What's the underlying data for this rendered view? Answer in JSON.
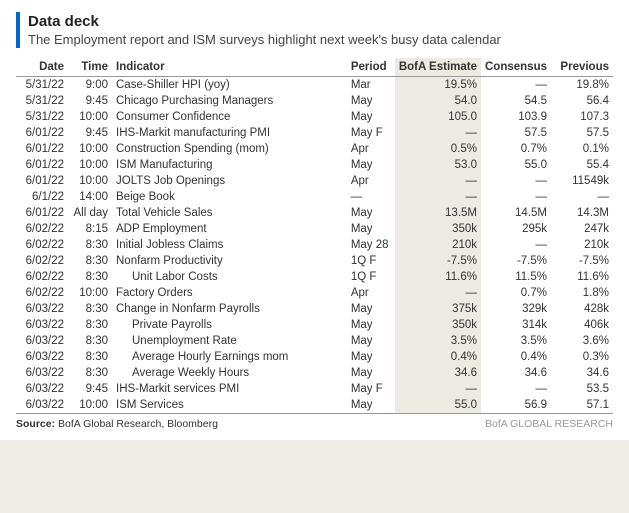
{
  "header": {
    "title": "Data deck",
    "subtitle": "The Employment report and ISM surveys highlight next week's busy data calendar"
  },
  "table": {
    "columns": [
      "Date",
      "Time",
      "Indicator",
      "Period",
      "BofA Estimate",
      "Consensus",
      "Previous"
    ],
    "highlight_column_index": 4,
    "highlight_bg": "#eceae3",
    "rows": [
      {
        "date": "5/31/22",
        "time": "9:00",
        "indicator": "Case-Shiller HPI (yoy)",
        "period": "Mar",
        "est": "19.5%",
        "cons": "—",
        "prev": "19.8%",
        "indent": false
      },
      {
        "date": "5/31/22",
        "time": "9:45",
        "indicator": "Chicago Purchasing Managers",
        "period": "May",
        "est": "54.0",
        "cons": "54.5",
        "prev": "56.4",
        "indent": false
      },
      {
        "date": "5/31/22",
        "time": "10:00",
        "indicator": "Consumer Confidence",
        "period": "May",
        "est": "105.0",
        "cons": "103.9",
        "prev": "107.3",
        "indent": false
      },
      {
        "date": "6/01/22",
        "time": "9:45",
        "indicator": "IHS-Markit manufacturing PMI",
        "period": "May F",
        "est": "—",
        "cons": "57.5",
        "prev": "57.5",
        "indent": false
      },
      {
        "date": "6/01/22",
        "time": "10:00",
        "indicator": "Construction Spending (mom)",
        "period": "Apr",
        "est": "0.5%",
        "cons": "0.7%",
        "prev": "0.1%",
        "indent": false
      },
      {
        "date": "6/01/22",
        "time": "10:00",
        "indicator": "ISM Manufacturing",
        "period": "May",
        "est": "53.0",
        "cons": "55.0",
        "prev": "55.4",
        "indent": false
      },
      {
        "date": "6/01/22",
        "time": "10:00",
        "indicator": "JOLTS Job Openings",
        "period": "Apr",
        "est": "—",
        "cons": "—",
        "prev": "11549k",
        "indent": false
      },
      {
        "date": "6/1/22",
        "time": "14:00",
        "indicator": "Beige Book",
        "period": "—",
        "est": "—",
        "cons": "—",
        "prev": "—",
        "indent": false
      },
      {
        "date": "6/01/22",
        "time": "All day",
        "indicator": "Total Vehicle Sales",
        "period": "May",
        "est": "13.5M",
        "cons": "14.5M",
        "prev": "14.3M",
        "indent": false
      },
      {
        "date": "6/02/22",
        "time": "8:15",
        "indicator": "ADP Employment",
        "period": "May",
        "est": "350k",
        "cons": "295k",
        "prev": "247k",
        "indent": false
      },
      {
        "date": "6/02/22",
        "time": "8:30",
        "indicator": "Initial Jobless Claims",
        "period": "May 28",
        "est": "210k",
        "cons": "—",
        "prev": "210k",
        "indent": false
      },
      {
        "date": "6/02/22",
        "time": "8:30",
        "indicator": "Nonfarm Productivity",
        "period": "1Q F",
        "est": "-7.5%",
        "cons": "-7.5%",
        "prev": "-7.5%",
        "indent": false
      },
      {
        "date": "6/02/22",
        "time": "8:30",
        "indicator": "Unit Labor Costs",
        "period": "1Q F",
        "est": "11.6%",
        "cons": "11.5%",
        "prev": "11.6%",
        "indent": true
      },
      {
        "date": "6/02/22",
        "time": "10:00",
        "indicator": "Factory Orders",
        "period": "Apr",
        "est": "—",
        "cons": "0.7%",
        "prev": "1.8%",
        "indent": false
      },
      {
        "date": "6/03/22",
        "time": "8:30",
        "indicator": "Change in Nonfarm Payrolls",
        "period": "May",
        "est": "375k",
        "cons": "329k",
        "prev": "428k",
        "indent": false
      },
      {
        "date": "6/03/22",
        "time": "8:30",
        "indicator": "Private Payrolls",
        "period": "May",
        "est": "350k",
        "cons": "314k",
        "prev": "406k",
        "indent": true
      },
      {
        "date": "6/03/22",
        "time": "8:30",
        "indicator": "Unemployment Rate",
        "period": "May",
        "est": "3.5%",
        "cons": "3.5%",
        "prev": "3.6%",
        "indent": true
      },
      {
        "date": "6/03/22",
        "time": "8:30",
        "indicator": "Average Hourly Earnings mom",
        "period": "May",
        "est": "0.4%",
        "cons": "0.4%",
        "prev": "0.3%",
        "indent": true
      },
      {
        "date": "6/03/22",
        "time": "8:30",
        "indicator": "Average Weekly Hours",
        "period": "May",
        "est": "34.6",
        "cons": "34.6",
        "prev": "34.6",
        "indent": true
      },
      {
        "date": "6/03/22",
        "time": "9:45",
        "indicator": "IHS-Markit services PMI",
        "period": "May F",
        "est": "—",
        "cons": "—",
        "prev": "53.5",
        "indent": false
      },
      {
        "date": "6/03/22",
        "time": "10:00",
        "indicator": "ISM Services",
        "period": "May",
        "est": "55.0",
        "cons": "56.9",
        "prev": "57.1",
        "indent": false
      }
    ]
  },
  "footer": {
    "source_label": "Source:",
    "source_text": "BofA Global Research, Bloomberg",
    "brand": "BofA GLOBAL RESEARCH"
  },
  "style": {
    "accent_color": "#0066cc",
    "background": "#ffffff",
    "page_bg": "#f0ede6",
    "font_family": "Arial, Helvetica, sans-serif",
    "title_fontsize": 15,
    "subtitle_fontsize": 13,
    "table_fontsize": 11.5
  }
}
